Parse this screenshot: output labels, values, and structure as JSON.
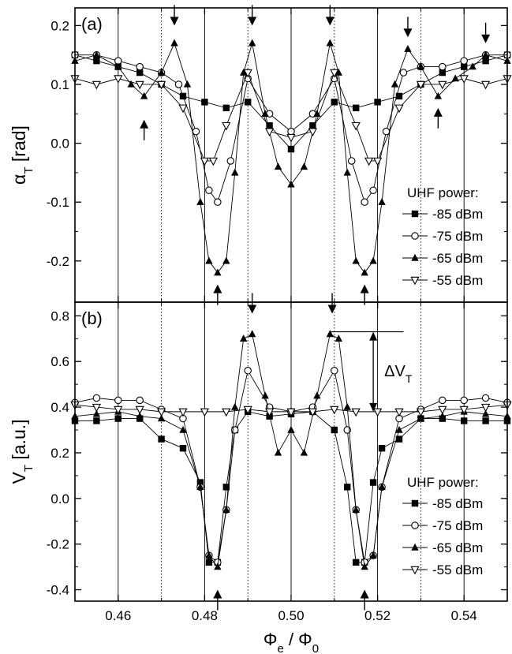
{
  "figure": {
    "xlabel": "Φ",
    "xlabel_sub": "e",
    "xlabel_sep": " / Φ",
    "xlabel_sub2": "0"
  },
  "chart_data": [
    {
      "type": "scatter",
      "panel_label": "(a)",
      "ylabel": "α",
      "ylabel_sub": "T",
      "ylabel_unit": " [rad]",
      "xlim": [
        0.45,
        0.55
      ],
      "ylim": [
        -0.27,
        0.23
      ],
      "xticks": [
        0.46,
        0.48,
        0.5,
        0.52,
        0.54
      ],
      "xtick_labels": [
        "0.46",
        "0.48",
        "0.50",
        "0.52",
        "0.54"
      ],
      "yticks": [
        -0.2,
        -0.1,
        0.0,
        0.1,
        0.2
      ],
      "ytick_labels": [
        "-0.2",
        "-0.1",
        "0.0",
        "0.1",
        "0.2"
      ],
      "vlines_solid": [
        0.46,
        0.48,
        0.5,
        0.52,
        0.54
      ],
      "vlines_dotted": [
        0.47,
        0.49,
        0.51,
        0.53
      ],
      "legend_title": "UHF power:",
      "legend_position": "bottom-right",
      "arrows_down": [
        [
          0.473,
          0.2
        ],
        [
          0.491,
          0.2
        ],
        [
          0.509,
          0.2
        ],
        [
          0.527,
          0.18
        ],
        [
          0.545,
          0.17
        ]
      ],
      "arrows_up": [
        [
          0.466,
          0.04
        ],
        [
          0.483,
          -0.24
        ],
        [
          0.517,
          -0.24
        ],
        [
          0.534,
          0.06
        ]
      ],
      "series": [
        {
          "name": "-85 dBm",
          "marker": "filled-square",
          "x": [
            0.45,
            0.455,
            0.46,
            0.465,
            0.47,
            0.475,
            0.48,
            0.485,
            0.49,
            0.495,
            0.5,
            0.505,
            0.51,
            0.515,
            0.52,
            0.525,
            0.53,
            0.535,
            0.54,
            0.545,
            0.55
          ],
          "y": [
            0.15,
            0.14,
            0.13,
            0.12,
            0.1,
            0.08,
            0.07,
            0.06,
            0.07,
            0.03,
            -0.01,
            0.03,
            0.07,
            0.06,
            0.07,
            0.08,
            0.1,
            0.12,
            0.13,
            0.14,
            0.15
          ]
        },
        {
          "name": "-75 dBm",
          "marker": "open-circle",
          "x": [
            0.45,
            0.455,
            0.46,
            0.465,
            0.47,
            0.474,
            0.478,
            0.481,
            0.483,
            0.486,
            0.49,
            0.495,
            0.5,
            0.505,
            0.51,
            0.514,
            0.517,
            0.519,
            0.522,
            0.526,
            0.53,
            0.535,
            0.54,
            0.545,
            0.55
          ],
          "y": [
            0.15,
            0.15,
            0.14,
            0.13,
            0.12,
            0.1,
            0.02,
            -0.08,
            -0.1,
            -0.03,
            0.11,
            0.05,
            0.02,
            0.05,
            0.11,
            -0.03,
            -0.1,
            -0.08,
            0.02,
            0.12,
            0.13,
            0.13,
            0.14,
            0.15,
            0.15
          ]
        },
        {
          "name": "-65 dBm",
          "marker": "filled-triangle-up",
          "x": [
            0.45,
            0.455,
            0.46,
            0.463,
            0.466,
            0.47,
            0.473,
            0.476,
            0.479,
            0.481,
            0.483,
            0.485,
            0.487,
            0.489,
            0.491,
            0.494,
            0.497,
            0.5,
            0.503,
            0.506,
            0.509,
            0.511,
            0.513,
            0.515,
            0.517,
            0.519,
            0.521,
            0.524,
            0.527,
            0.53,
            0.534,
            0.538,
            0.542,
            0.545,
            0.55
          ],
          "y": [
            0.14,
            0.15,
            0.13,
            0.1,
            0.08,
            0.12,
            0.17,
            0.1,
            -0.1,
            -0.2,
            -0.22,
            -0.2,
            -0.05,
            0.12,
            0.17,
            0.05,
            -0.04,
            -0.07,
            -0.04,
            0.05,
            0.17,
            0.12,
            -0.05,
            -0.2,
            -0.22,
            -0.2,
            -0.1,
            0.1,
            0.16,
            0.13,
            0.08,
            0.11,
            0.13,
            0.15,
            0.14
          ]
        },
        {
          "name": "-55 dBm",
          "marker": "open-triangle-down",
          "x": [
            0.45,
            0.455,
            0.46,
            0.465,
            0.47,
            0.475,
            0.48,
            0.482,
            0.485,
            0.49,
            0.495,
            0.5,
            0.505,
            0.51,
            0.515,
            0.518,
            0.52,
            0.525,
            0.53,
            0.535,
            0.54,
            0.545,
            0.55
          ],
          "y": [
            0.11,
            0.1,
            0.11,
            0.1,
            0.1,
            0.06,
            -0.03,
            -0.03,
            0.03,
            0.12,
            0.02,
            0.01,
            0.02,
            0.12,
            0.03,
            -0.03,
            -0.03,
            0.06,
            0.1,
            0.1,
            0.11,
            0.1,
            0.11
          ]
        }
      ]
    },
    {
      "type": "scatter",
      "panel_label": "(b)",
      "ylabel": "V",
      "ylabel_sub": "T",
      "ylabel_unit": " [a.u.]",
      "xlim": [
        0.45,
        0.55
      ],
      "ylim": [
        -0.45,
        0.86
      ],
      "xticks": [
        0.46,
        0.48,
        0.5,
        0.52,
        0.54
      ],
      "xtick_labels": [
        "0.46",
        "0.48",
        "0.50",
        "0.52",
        "0.54"
      ],
      "yticks": [
        -0.4,
        -0.2,
        0.0,
        0.2,
        0.4,
        0.6,
        0.8
      ],
      "ytick_labels": [
        "-0.4",
        "-0.2",
        "0.0",
        "0.2",
        "0.4",
        "0.6",
        "0.8"
      ],
      "vlines_solid": [
        0.46,
        0.48,
        0.5,
        0.52,
        0.54
      ],
      "vlines_dotted": [
        0.47,
        0.49,
        0.51,
        0.53
      ],
      "legend_title": "UHF power:",
      "legend_position": "bottom-right",
      "annotation": "ΔV",
      "annotation_sub": "T",
      "delta_range": [
        0.38,
        0.73
      ],
      "delta_x": 0.519,
      "arrows_down": [
        [
          0.491,
          0.81
        ],
        [
          0.5095,
          0.81
        ]
      ],
      "arrows_up": [
        [
          0.483,
          -0.4
        ],
        [
          0.517,
          -0.4
        ]
      ],
      "series": [
        {
          "name": "-85 dBm",
          "marker": "filled-square",
          "x": [
            0.45,
            0.455,
            0.46,
            0.465,
            0.47,
            0.475,
            0.479,
            0.481,
            0.483,
            0.485,
            0.487,
            0.49,
            0.495,
            0.5,
            0.505,
            0.51,
            0.513,
            0.515,
            0.517,
            0.519,
            0.521,
            0.525,
            0.53,
            0.535,
            0.54,
            0.545,
            0.55
          ],
          "y": [
            0.34,
            0.34,
            0.35,
            0.35,
            0.26,
            0.22,
            0.07,
            -0.28,
            -0.28,
            0.05,
            0.3,
            0.38,
            0.36,
            0.37,
            0.38,
            0.3,
            0.05,
            -0.28,
            -0.28,
            0.07,
            0.22,
            0.26,
            0.35,
            0.35,
            0.34,
            0.34,
            0.34
          ]
        },
        {
          "name": "-75 dBm",
          "marker": "open-circle",
          "x": [
            0.45,
            0.455,
            0.46,
            0.465,
            0.47,
            0.475,
            0.479,
            0.481,
            0.483,
            0.485,
            0.487,
            0.49,
            0.495,
            0.5,
            0.505,
            0.51,
            0.513,
            0.515,
            0.517,
            0.519,
            0.521,
            0.525,
            0.53,
            0.535,
            0.54,
            0.545,
            0.55
          ],
          "y": [
            0.42,
            0.44,
            0.43,
            0.43,
            0.39,
            0.35,
            0.05,
            -0.25,
            -0.28,
            -0.05,
            0.3,
            0.56,
            0.4,
            0.38,
            0.4,
            0.56,
            0.3,
            -0.05,
            -0.28,
            -0.25,
            0.05,
            0.35,
            0.39,
            0.43,
            0.43,
            0.44,
            0.42
          ]
        },
        {
          "name": "-65 dBm",
          "marker": "filled-triangle-up",
          "x": [
            0.45,
            0.455,
            0.46,
            0.465,
            0.47,
            0.475,
            0.479,
            0.481,
            0.483,
            0.485,
            0.487,
            0.489,
            0.491,
            0.494,
            0.497,
            0.5,
            0.503,
            0.506,
            0.509,
            0.511,
            0.513,
            0.515,
            0.517,
            0.519,
            0.521,
            0.525,
            0.53,
            0.535,
            0.54,
            0.545,
            0.55
          ],
          "y": [
            0.36,
            0.37,
            0.38,
            0.36,
            0.35,
            0.3,
            0.05,
            -0.25,
            -0.3,
            -0.05,
            0.4,
            0.7,
            0.72,
            0.45,
            0.2,
            0.3,
            0.2,
            0.45,
            0.72,
            0.7,
            0.4,
            -0.05,
            -0.3,
            -0.25,
            0.05,
            0.3,
            0.35,
            0.36,
            0.38,
            0.37,
            0.36
          ]
        },
        {
          "name": "-55 dBm",
          "marker": "open-triangle-down",
          "x": [
            0.45,
            0.455,
            0.46,
            0.465,
            0.47,
            0.475,
            0.48,
            0.485,
            0.49,
            0.495,
            0.5,
            0.505,
            0.51,
            0.515,
            0.52,
            0.525,
            0.53,
            0.535,
            0.54,
            0.545,
            0.55
          ],
          "y": [
            0.41,
            0.4,
            0.39,
            0.39,
            0.38,
            0.38,
            0.38,
            0.38,
            0.39,
            0.38,
            0.38,
            0.38,
            0.39,
            0.38,
            0.38,
            0.38,
            0.38,
            0.39,
            0.39,
            0.4,
            0.41
          ]
        }
      ]
    }
  ]
}
